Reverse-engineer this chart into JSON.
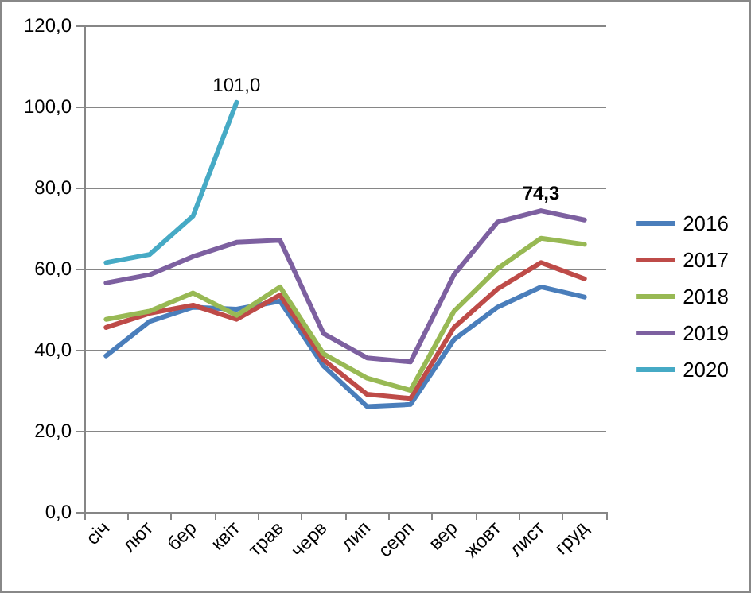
{
  "chart_data": {
    "type": "line",
    "categories": [
      "січ",
      "лют",
      "бер",
      "квіт",
      "трав",
      "черв",
      "лип",
      "серп",
      "вер",
      "жовт",
      "лист",
      "груд"
    ],
    "series": [
      {
        "name": "2016",
        "color": "#4a7ebb",
        "values": [
          38.5,
          47,
          50.5,
          50,
          52,
          36,
          26,
          26.5,
          42.5,
          50.5,
          55.5,
          53
        ]
      },
      {
        "name": "2017",
        "color": "#be4b48",
        "values": [
          45.5,
          49,
          51,
          47.5,
          53.5,
          37.5,
          29,
          28,
          45.5,
          55,
          61.5,
          57.5
        ]
      },
      {
        "name": "2018",
        "color": "#98b954",
        "values": [
          47.5,
          49.5,
          54,
          48.5,
          55.5,
          39,
          33,
          30,
          49.5,
          60,
          67.5,
          66
        ]
      },
      {
        "name": "2019",
        "color": "#7d60a0",
        "values": [
          56.5,
          58.5,
          63,
          66.5,
          67,
          44,
          38,
          37,
          58.5,
          71.5,
          74.3,
          72
        ],
        "value_labels": [
          null,
          null,
          null,
          null,
          null,
          null,
          null,
          null,
          null,
          null,
          "74,3",
          null
        ]
      },
      {
        "name": "2020",
        "color": "#46aac5",
        "values": [
          61.5,
          63.5,
          73,
          101,
          null,
          null,
          null,
          null,
          null,
          null,
          null,
          null
        ],
        "value_labels": [
          null,
          null,
          null,
          "101,0",
          null,
          null,
          null,
          null,
          null,
          null,
          null,
          null
        ]
      }
    ],
    "ylim": [
      0,
      120
    ],
    "yticks": [
      {
        "value": 0,
        "label": "0,0"
      },
      {
        "value": 20,
        "label": "20,0"
      },
      {
        "value": 40,
        "label": "40,0"
      },
      {
        "value": 60,
        "label": "60,0"
      },
      {
        "value": 80,
        "label": "80,0"
      },
      {
        "value": 100,
        "label": "100,0"
      },
      {
        "value": 120,
        "label": "120,0"
      }
    ],
    "grid": "y",
    "legend": "right",
    "marker": "none",
    "line_style": "solid"
  }
}
